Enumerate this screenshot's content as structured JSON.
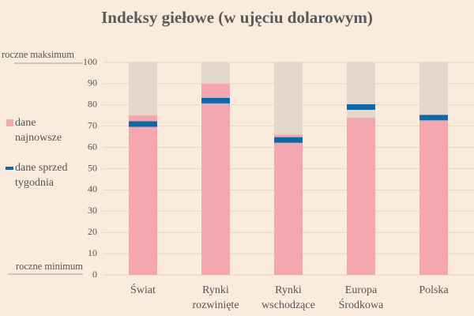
{
  "chart_data": {
    "type": "bar",
    "title": "Indeksy giełowe (w ujęciu dolarowym)",
    "annotations": {
      "max": "roczne maksimum",
      "min": "roczne minimum"
    },
    "categories": [
      "Świat",
      "Rynki\nrozwinięte",
      "Rynki\nwschodzące",
      "Europa\nŚrodkowa",
      "Polska"
    ],
    "series": [
      {
        "name": "dane\nnajnowsze",
        "color": "#f4a7ae",
        "values": [
          75,
          90,
          66,
          74,
          72.5
        ]
      },
      {
        "name": "dane sprzed\ntygodnia",
        "color": "#0f68a6",
        "values": [
          71,
          82,
          63.5,
          79,
          74
        ]
      }
    ],
    "range_color": "#e4d8cd",
    "ylim": [
      0,
      100
    ],
    "yticks": [
      0,
      10,
      20,
      30,
      40,
      50,
      60,
      70,
      80,
      90,
      100
    ],
    "grid": true
  }
}
